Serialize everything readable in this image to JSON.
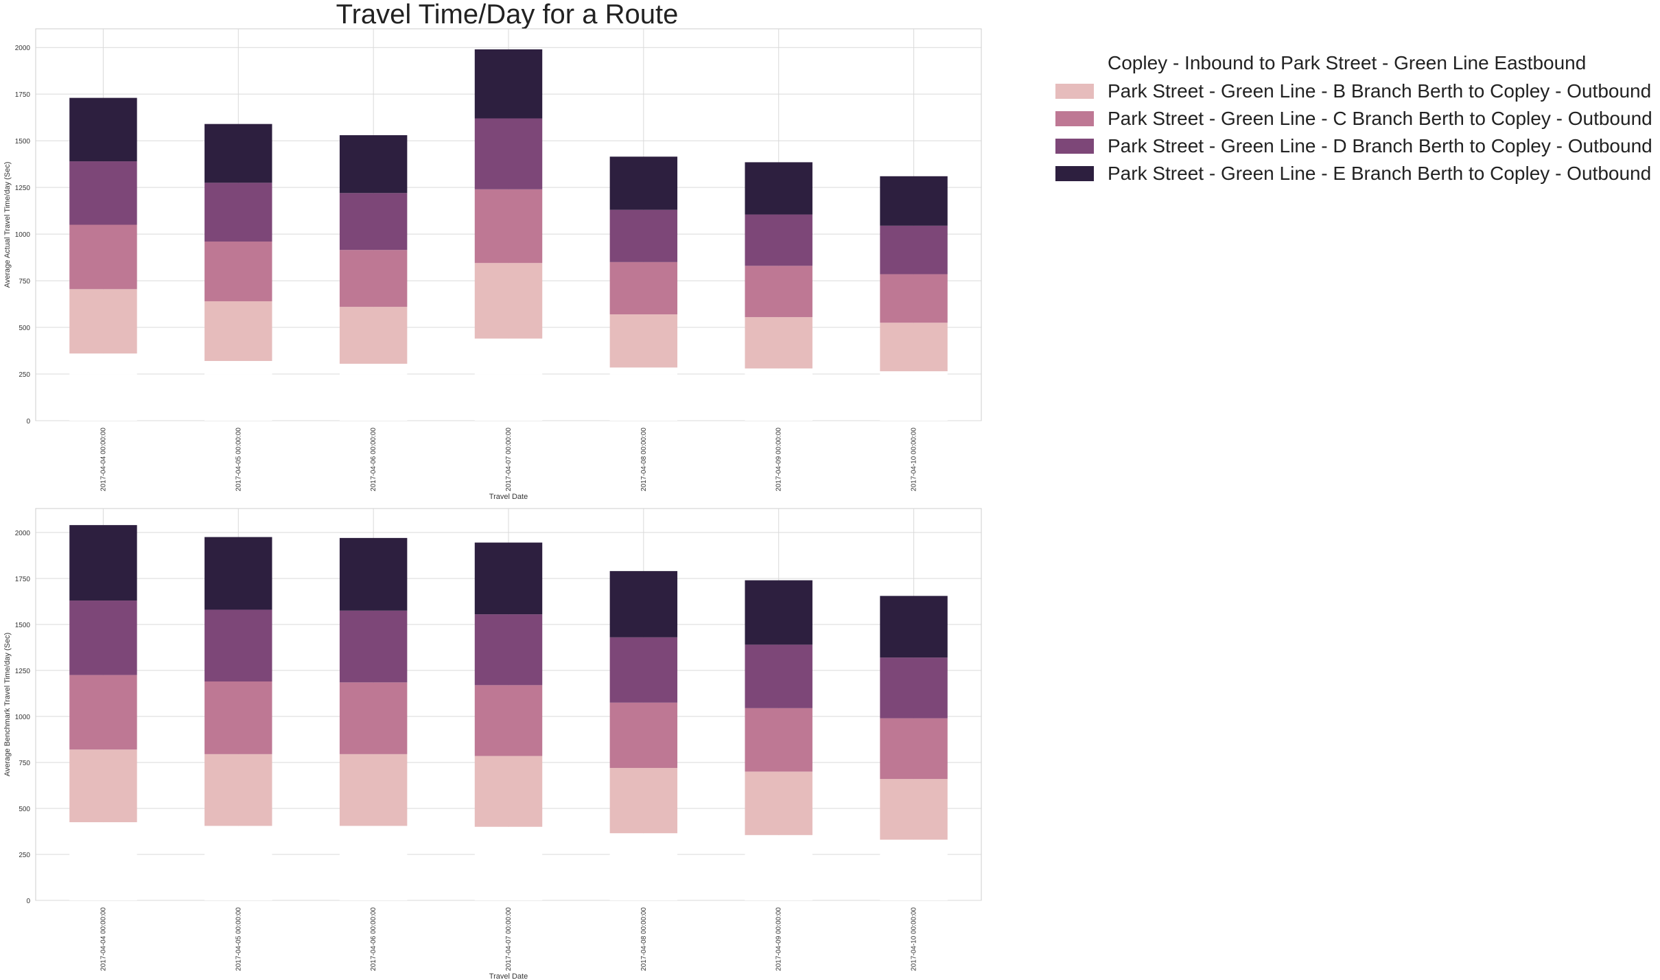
{
  "chart_data": {
    "title": "Travel Time/Day for a Route",
    "type": "bar",
    "stacked": true,
    "legend": {
      "placement": "outside-right",
      "header": "Copley - Inbound to Park Street - Green Line Eastbound",
      "entries": [
        {
          "label": "Park Street - Green Line - B Branch Berth to Copley - Outbound",
          "color": "#e6bcbc"
        },
        {
          "label": "Park Street - Green Line - C Branch Berth to Copley - Outbound",
          "color": "#be7894"
        },
        {
          "label": "Park Street - Green Line - D Branch Berth to Copley - Outbound",
          "color": "#7d4778"
        },
        {
          "label": "Park Street - Green Line - E Branch Berth to Copley - Outbound",
          "color": "#2d1f3f"
        }
      ]
    },
    "base_series": {
      "label": "Copley - Inbound to Park Street - Green Line Eastbound",
      "color": "#ffffff"
    },
    "panels": [
      {
        "ylabel": "Average Actual Travel Time/day (Sec)",
        "xlabel": "Travel Date",
        "ylim": [
          0,
          2100
        ],
        "yticks": [
          0,
          250,
          500,
          750,
          1000,
          1250,
          1500,
          1750,
          2000
        ],
        "grid": true,
        "categories": [
          "2017-04-04 00:00:00",
          "2017-04-05 00:00:00",
          "2017-04-06 00:00:00",
          "2017-04-07 00:00:00",
          "2017-04-08 00:00:00",
          "2017-04-09 00:00:00",
          "2017-04-10 00:00:00"
        ],
        "series": [
          {
            "values": [
              250,
              250,
              250,
              250,
              250,
              250,
              250
            ]
          },
          {
            "values": [
              110,
              70,
              55,
              190,
              35,
              30,
              15
            ]
          },
          {
            "values": [
              345,
              320,
              305,
              405,
              285,
              275,
              260
            ]
          },
          {
            "values": [
              345,
              320,
              305,
              395,
              280,
              275,
              260
            ]
          },
          {
            "values": [
              340,
              315,
              305,
              380,
              280,
              275,
              260
            ]
          },
          {
            "values": [
              340,
              315,
              310,
              370,
              285,
              280,
              265
            ]
          }
        ]
      },
      {
        "ylabel": "Average Benchmark Travel Time/day (Sec)",
        "xlabel": "Travel Date",
        "ylim": [
          0,
          2130
        ],
        "yticks": [
          0,
          250,
          500,
          750,
          1000,
          1250,
          1500,
          1750,
          2000
        ],
        "grid": true,
        "categories": [
          "2017-04-04 00:00:00",
          "2017-04-05 00:00:00",
          "2017-04-06 00:00:00",
          "2017-04-07 00:00:00",
          "2017-04-08 00:00:00",
          "2017-04-09 00:00:00",
          "2017-04-10 00:00:00"
        ],
        "series": [
          {
            "values": [
              250,
              250,
              250,
              250,
              250,
              250,
              250
            ]
          },
          {
            "values": [
              175,
              155,
              155,
              150,
              115,
              105,
              80
            ]
          },
          {
            "values": [
              395,
              390,
              390,
              385,
              355,
              345,
              330
            ]
          },
          {
            "values": [
              405,
              395,
              390,
              385,
              355,
              345,
              330
            ]
          },
          {
            "values": [
              405,
              390,
              390,
              385,
              355,
              345,
              330
            ]
          },
          {
            "values": [
              410,
              395,
              395,
              390,
              360,
              350,
              335
            ]
          }
        ]
      }
    ]
  }
}
